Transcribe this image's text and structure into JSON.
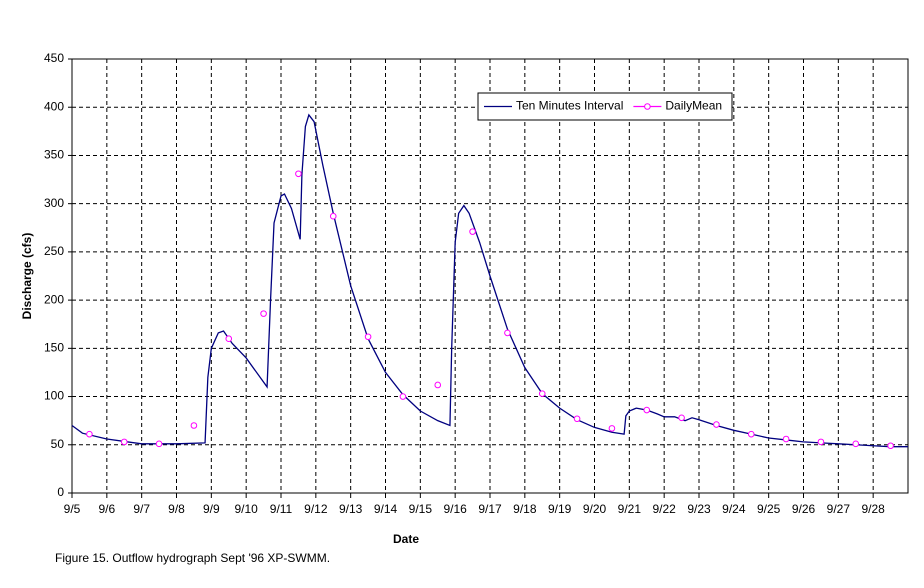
{
  "chart_data": {
    "type": "line",
    "x_label": "Date",
    "y_label": "Discharge (cfs)",
    "caption": "Figure 15.  Outflow hydrograph Sept '96 XP-SWMM.",
    "xlim": [
      5,
      29
    ],
    "xticks": [
      {
        "value": 5,
        "label": "9/5"
      },
      {
        "value": 6,
        "label": "9/6"
      },
      {
        "value": 7,
        "label": "9/7"
      },
      {
        "value": 8,
        "label": "9/8"
      },
      {
        "value": 9,
        "label": "9/9"
      },
      {
        "value": 10,
        "label": "9/10"
      },
      {
        "value": 11,
        "label": "9/11"
      },
      {
        "value": 12,
        "label": "9/12"
      },
      {
        "value": 13,
        "label": "9/13"
      },
      {
        "value": 14,
        "label": "9/14"
      },
      {
        "value": 15,
        "label": "9/15"
      },
      {
        "value": 16,
        "label": "9/16"
      },
      {
        "value": 17,
        "label": "9/17"
      },
      {
        "value": 18,
        "label": "9/18"
      },
      {
        "value": 19,
        "label": "9/19"
      },
      {
        "value": 20,
        "label": "9/20"
      },
      {
        "value": 21,
        "label": "9/21"
      },
      {
        "value": 22,
        "label": "9/22"
      },
      {
        "value": 23,
        "label": "9/23"
      },
      {
        "value": 24,
        "label": "9/24"
      },
      {
        "value": 25,
        "label": "9/25"
      },
      {
        "value": 26,
        "label": "9/26"
      },
      {
        "value": 27,
        "label": "9/27"
      },
      {
        "value": 28,
        "label": "9/28"
      }
    ],
    "ylim": [
      0,
      450
    ],
    "yticks": [
      0,
      50,
      100,
      150,
      200,
      250,
      300,
      350,
      400,
      450
    ],
    "grid": true,
    "series": [
      {
        "name": "Ten Minutes Interval",
        "color": "#000080",
        "marker": false,
        "x": [
          5,
          5.3,
          6,
          7,
          8,
          8.82,
          8.9,
          9,
          9.2,
          9.35,
          9.6,
          10,
          10.6,
          10.7,
          10.8,
          11,
          11.1,
          11.3,
          11.55,
          11.6,
          11.7,
          11.8,
          11.95,
          12.2,
          12.5,
          13,
          13.5,
          14,
          14.5,
          15,
          15.5,
          15.85,
          15.9,
          16,
          16.1,
          16.25,
          16.4,
          16.7,
          17,
          17.5,
          18,
          18.5,
          19,
          19.5,
          20,
          20.5,
          20.85,
          20.9,
          21,
          21.2,
          21.5,
          21.8,
          22,
          22.3,
          22.6,
          22.8,
          23,
          23.5,
          24,
          24.5,
          25,
          25.5,
          26,
          26.5,
          27,
          27.5,
          28,
          28.5,
          29
        ],
        "values": [
          70,
          62,
          56,
          51,
          51,
          52,
          120,
          150,
          166,
          168,
          155,
          140,
          110,
          200,
          280,
          308,
          310,
          295,
          263,
          330,
          380,
          392,
          385,
          340,
          290,
          215,
          160,
          125,
          102,
          85,
          75,
          70,
          150,
          260,
          290,
          298,
          290,
          260,
          225,
          170,
          130,
          103,
          88,
          76,
          68,
          63,
          61,
          80,
          85,
          88,
          86,
          82,
          79,
          79,
          75,
          78,
          76,
          70,
          65,
          61,
          57,
          55,
          53,
          52,
          51,
          50,
          49,
          48,
          48
        ]
      },
      {
        "name": "DailyMean",
        "color": "#ff00ff",
        "marker": true,
        "x": [
          5.5,
          6.5,
          7.5,
          8.5,
          9.5,
          10.5,
          11.5,
          12.5,
          13.5,
          14.5,
          15.5,
          16.5,
          17.5,
          18.5,
          19.5,
          20.5,
          21.5,
          22.5,
          23.5,
          24.5,
          25.5,
          26.5,
          27.5,
          28.5
        ],
        "values": [
          61,
          53,
          51,
          70,
          160,
          186,
          331,
          287,
          162,
          100,
          112,
          271,
          166,
          103,
          77,
          67,
          86,
          78,
          71,
          61,
          56,
          53,
          51,
          49
        ]
      }
    ]
  }
}
